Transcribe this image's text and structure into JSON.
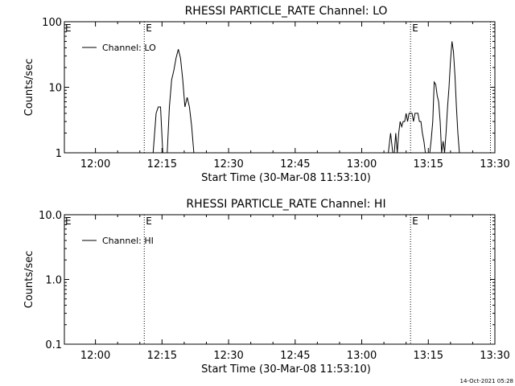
{
  "footer": {
    "timestamp": "14-Oct-2021 05:28"
  },
  "chart_data": [
    {
      "type": "line",
      "title": "RHESSI PARTICLE_RATE Channel: LO",
      "xlabel": "Start Time (30-Mar-08 11:53:10)",
      "ylabel": "Counts/sec",
      "yscale": "log",
      "ylim": [
        1,
        100
      ],
      "xlim_minutes_from_1200": [
        -7,
        90
      ],
      "x_ticks": [
        "12:00",
        "12:15",
        "12:30",
        "12:45",
        "13:00",
        "13:15",
        "13:30"
      ],
      "y_ticks": [
        "1",
        "10",
        "100"
      ],
      "legend": {
        "placement": "top-left",
        "entries": [
          "Channel: LO"
        ]
      },
      "markers": [
        {
          "label": "E",
          "x": "12:11"
        },
        {
          "label": "E",
          "x": "13:11"
        },
        {
          "label": "",
          "x": "13:29"
        }
      ],
      "series": [
        {
          "name": "Channel: LO",
          "x": [
            "12:13:00",
            "12:13:40",
            "12:14:10",
            "12:14:40",
            "12:15:10",
            "12:15:40",
            "12:16:10",
            "12:16:40",
            "12:17:10",
            "12:17:40",
            "12:18:10",
            "12:18:40",
            "12:19:10",
            "12:19:40",
            "12:20:10",
            "12:20:40",
            "12:21:10",
            "12:21:40",
            "12:22:10",
            "12:22:40",
            "13:06:00",
            "13:06:30",
            "13:07:00",
            "13:07:20",
            "13:07:40",
            "13:08:00",
            "13:08:20",
            "13:08:40",
            "13:09:00",
            "13:09:20",
            "13:09:40",
            "13:10:00",
            "13:10:20",
            "13:10:40",
            "13:11:00",
            "13:11:20",
            "13:11:40",
            "13:12:00",
            "13:12:20",
            "13:12:40",
            "13:13:00",
            "13:13:20",
            "13:13:40",
            "13:14:00",
            "13:14:20",
            "13:14:40",
            "13:15:00",
            "13:15:20",
            "13:15:40",
            "13:16:00",
            "13:16:20",
            "13:16:40",
            "13:17:00",
            "13:17:20",
            "13:17:40",
            "13:18:00",
            "13:18:20",
            "13:18:40",
            "13:19:00",
            "13:19:20",
            "13:19:40",
            "13:20:00",
            "13:20:20",
            "13:20:40",
            "13:21:00",
            "13:21:20",
            "13:21:40",
            "13:22:00",
            "13:22:20",
            "13:22:40",
            "13:23:00",
            "13:23:20",
            "13:23:40",
            "13:24:00",
            "13:24:20",
            "13:24:40",
            "13:25:00"
          ],
          "values": [
            1,
            4,
            5,
            5,
            1,
            1,
            1,
            5,
            13,
            18,
            28,
            38,
            28,
            13,
            5,
            7,
            5,
            2.6,
            1,
            1,
            1,
            2,
            1,
            1,
            2,
            1,
            2,
            3,
            2.5,
            3,
            3,
            4,
            3,
            4,
            4,
            4,
            3,
            4,
            4,
            4,
            3,
            3,
            2,
            1.5,
            1,
            1,
            1,
            1,
            1.6,
            3,
            12,
            11,
            7.5,
            6,
            3,
            1,
            1.5,
            1,
            2,
            5,
            10,
            25,
            50,
            35,
            15,
            5,
            2,
            1,
            1,
            1,
            1,
            1,
            1,
            1,
            1,
            1,
            1
          ]
        }
      ]
    },
    {
      "type": "line",
      "title": "RHESSI PARTICLE_RATE Channel: HI",
      "xlabel": "Start Time (30-Mar-08 11:53:10)",
      "ylabel": "Counts/sec",
      "yscale": "log",
      "ylim": [
        0.1,
        10
      ],
      "xlim_minutes_from_1200": [
        -7,
        90
      ],
      "x_ticks": [
        "12:00",
        "12:15",
        "12:30",
        "12:45",
        "13:00",
        "13:15",
        "13:30"
      ],
      "y_ticks": [
        "0.1",
        "1.0",
        "10.0"
      ],
      "legend": {
        "placement": "top-left",
        "entries": [
          "Channel: HI"
        ]
      },
      "markers": [
        {
          "label": "E",
          "x": "12:11"
        },
        {
          "label": "E",
          "x": "13:11"
        },
        {
          "label": "",
          "x": "13:29"
        }
      ],
      "series": [
        {
          "name": "Channel: HI",
          "x": [],
          "values": []
        }
      ]
    }
  ]
}
